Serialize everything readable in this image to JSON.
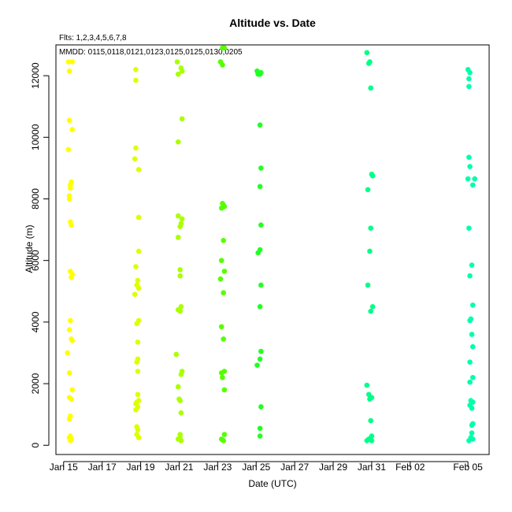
{
  "chart_data": {
    "type": "scatter",
    "title": "Altitude  vs. Date",
    "subtitle": "Flts: 1,2,3,4,5,6,7,8",
    "note": "MMDD: 0115,0118,0121,0123,0125,0125,0130,0205",
    "xlabel": "Date (UTC)",
    "ylabel": "Altitude (m)",
    "x_unit": "days since Jan 15",
    "xlim": [
      -0.4,
      22.1
    ],
    "ylim": [
      -300,
      13000
    ],
    "x_ticks": [
      {
        "value": 0,
        "label": "Jan 15"
      },
      {
        "value": 2,
        "label": "Jan 17"
      },
      {
        "value": 4,
        "label": "Jan 19"
      },
      {
        "value": 6,
        "label": "Jan 21"
      },
      {
        "value": 8,
        "label": "Jan 23"
      },
      {
        "value": 10,
        "label": "Jan 25"
      },
      {
        "value": 12,
        "label": "Jan 27"
      },
      {
        "value": 14,
        "label": "Jan 29"
      },
      {
        "value": 16,
        "label": "Jan 31"
      },
      {
        "value": 18,
        "label": "Feb 02"
      },
      {
        "value": 21,
        "label": "Feb 05"
      }
    ],
    "y_ticks": [
      {
        "value": 0,
        "label": "0"
      },
      {
        "value": 2000,
        "label": "2000"
      },
      {
        "value": 4000,
        "label": "4000"
      },
      {
        "value": 6000,
        "label": "6000"
      },
      {
        "value": 8000,
        "label": "8000"
      },
      {
        "value": 10000,
        "label": "10000"
      },
      {
        "value": 12000,
        "label": "12000"
      }
    ],
    "grid": false,
    "legend": "none",
    "series": [
      {
        "color": "#FFFF00",
        "points": [
          [
            0.25,
            12450
          ],
          [
            0.45,
            12450
          ],
          [
            0.3,
            12150
          ],
          [
            0.3,
            10550
          ],
          [
            0.45,
            10250
          ],
          [
            0.25,
            9600
          ],
          [
            0.4,
            8550
          ],
          [
            0.35,
            8450
          ],
          [
            0.35,
            8350
          ],
          [
            0.3,
            8100
          ],
          [
            0.3,
            8000
          ],
          [
            0.35,
            7250
          ],
          [
            0.4,
            7150
          ],
          [
            0.35,
            5650
          ],
          [
            0.45,
            5550
          ],
          [
            0.4,
            5450
          ],
          [
            0.35,
            4050
          ],
          [
            0.3,
            3750
          ],
          [
            0.4,
            3450
          ],
          [
            0.45,
            3400
          ],
          [
            0.2,
            3000
          ],
          [
            0.3,
            2350
          ],
          [
            0.45,
            1800
          ],
          [
            0.3,
            1550
          ],
          [
            0.4,
            1500
          ],
          [
            0.35,
            950
          ],
          [
            0.3,
            850
          ],
          [
            0.35,
            300
          ],
          [
            0.3,
            250
          ],
          [
            0.4,
            200
          ],
          [
            0.35,
            150
          ]
        ]
      },
      {
        "color": "#DDFF00",
        "points": [
          [
            3.75,
            12200
          ],
          [
            3.75,
            11850
          ],
          [
            3.75,
            9650
          ],
          [
            3.7,
            9300
          ],
          [
            3.9,
            8950
          ],
          [
            3.9,
            7400
          ],
          [
            3.9,
            6300
          ],
          [
            3.75,
            5800
          ],
          [
            3.85,
            5350
          ],
          [
            3.8,
            5200
          ],
          [
            3.9,
            5100
          ],
          [
            3.7,
            4900
          ],
          [
            3.9,
            4050
          ],
          [
            3.8,
            3950
          ],
          [
            3.85,
            3350
          ],
          [
            3.85,
            2800
          ],
          [
            3.8,
            2700
          ],
          [
            3.85,
            2400
          ],
          [
            3.85,
            1650
          ],
          [
            3.9,
            1450
          ],
          [
            3.8,
            1400
          ],
          [
            3.75,
            1350
          ],
          [
            3.85,
            1250
          ],
          [
            3.75,
            1150
          ],
          [
            3.8,
            600
          ],
          [
            3.85,
            500
          ],
          [
            3.8,
            350
          ],
          [
            3.9,
            250
          ]
        ]
      },
      {
        "color": "#AAFF00",
        "points": [
          [
            5.9,
            12450
          ],
          [
            6.1,
            12250
          ],
          [
            6.15,
            12150
          ],
          [
            5.95,
            12050
          ],
          [
            6.15,
            10600
          ],
          [
            5.95,
            9850
          ],
          [
            5.95,
            7450
          ],
          [
            6.15,
            7350
          ],
          [
            6.1,
            7200
          ],
          [
            6.05,
            7100
          ],
          [
            5.95,
            6750
          ],
          [
            6.05,
            5700
          ],
          [
            6.05,
            5500
          ],
          [
            6.1,
            4500
          ],
          [
            5.95,
            4400
          ],
          [
            6.05,
            4350
          ],
          [
            5.85,
            2950
          ],
          [
            6.15,
            2400
          ],
          [
            6.1,
            2300
          ],
          [
            5.95,
            1900
          ],
          [
            6.05,
            1450
          ],
          [
            6.0,
            1500
          ],
          [
            6.1,
            1050
          ],
          [
            6.05,
            350
          ],
          [
            6.05,
            250
          ],
          [
            5.95,
            200
          ],
          [
            6.1,
            150
          ]
        ]
      },
      {
        "color": "#55FF00",
        "points": [
          [
            8.25,
            12900
          ],
          [
            8.35,
            12900
          ],
          [
            8.15,
            12450
          ],
          [
            8.25,
            12350
          ],
          [
            8.25,
            7850
          ],
          [
            8.3,
            7800
          ],
          [
            8.3,
            7750
          ],
          [
            8.2,
            7700
          ],
          [
            8.35,
            7750
          ],
          [
            8.3,
            6650
          ],
          [
            8.2,
            6000
          ],
          [
            8.35,
            5650
          ],
          [
            8.15,
            5400
          ],
          [
            8.3,
            4950
          ],
          [
            8.2,
            3850
          ],
          [
            8.3,
            3450
          ],
          [
            8.35,
            2400
          ],
          [
            8.2,
            2350
          ],
          [
            8.25,
            2200
          ],
          [
            8.35,
            1800
          ],
          [
            8.35,
            350
          ],
          [
            8.2,
            200
          ],
          [
            8.3,
            150
          ]
        ]
      },
      {
        "color": "#22FF22",
        "points": [
          [
            10.05,
            12150
          ],
          [
            10.25,
            12100
          ],
          [
            10.1,
            12050
          ],
          [
            10.2,
            12050
          ],
          [
            10.2,
            10400
          ],
          [
            10.25,
            9000
          ],
          [
            10.2,
            8400
          ],
          [
            10.25,
            7150
          ],
          [
            10.2,
            6350
          ],
          [
            10.1,
            6250
          ],
          [
            10.25,
            5200
          ],
          [
            10.2,
            4500
          ],
          [
            10.25,
            3050
          ],
          [
            10.2,
            2800
          ],
          [
            10.05,
            2600
          ],
          [
            10.25,
            1250
          ],
          [
            10.2,
            550
          ],
          [
            10.2,
            300
          ]
        ]
      },
      {
        "color": "#00FF88",
        "points": [
          [
            15.75,
            12750
          ],
          [
            15.9,
            12450
          ],
          [
            15.85,
            12400
          ],
          [
            15.95,
            11600
          ],
          [
            16.0,
            8800
          ],
          [
            16.05,
            8750
          ],
          [
            15.8,
            8300
          ],
          [
            15.95,
            7050
          ],
          [
            15.9,
            6300
          ],
          [
            15.8,
            5200
          ],
          [
            16.05,
            4500
          ],
          [
            15.95,
            4350
          ],
          [
            15.75,
            1950
          ],
          [
            15.85,
            1650
          ],
          [
            15.95,
            1550
          ],
          [
            15.9,
            1500
          ],
          [
            16.0,
            1550
          ],
          [
            15.95,
            800
          ],
          [
            16.0,
            300
          ],
          [
            15.85,
            200
          ],
          [
            16.0,
            150
          ],
          [
            15.75,
            150
          ]
        ]
      },
      {
        "color": "#00FFAA",
        "points": [
          [
            21.0,
            12200
          ],
          [
            21.1,
            12100
          ],
          [
            21.05,
            11900
          ],
          [
            21.05,
            11650
          ],
          [
            21.05,
            9350
          ],
          [
            21.1,
            9050
          ],
          [
            21.0,
            8650
          ],
          [
            21.35,
            8650
          ],
          [
            21.25,
            8450
          ],
          [
            21.05,
            7050
          ],
          [
            21.2,
            5850
          ],
          [
            21.1,
            5500
          ],
          [
            21.25,
            4550
          ],
          [
            21.15,
            4100
          ],
          [
            21.1,
            4050
          ],
          [
            21.2,
            3600
          ],
          [
            21.25,
            3200
          ],
          [
            21.1,
            2700
          ],
          [
            21.25,
            2200
          ],
          [
            21.1,
            2050
          ],
          [
            21.15,
            1450
          ],
          [
            21.25,
            1400
          ],
          [
            21.1,
            1300
          ],
          [
            21.2,
            1200
          ],
          [
            21.25,
            700
          ],
          [
            21.2,
            650
          ],
          [
            21.2,
            400
          ],
          [
            21.15,
            250
          ],
          [
            21.25,
            200
          ],
          [
            21.05,
            150
          ]
        ]
      }
    ]
  }
}
